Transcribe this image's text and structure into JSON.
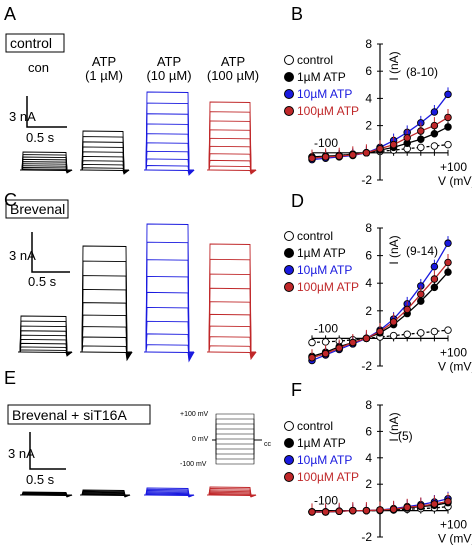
{
  "panels": {
    "A": {
      "letter": "A",
      "box_label": "control",
      "con_label": "con",
      "atp1": "ATP",
      "atp1_conc": "(1 µM)",
      "atp10": "ATP",
      "atp10_conc": "(10 µM)",
      "atp100": "ATP",
      "atp100_conc": "(100 µM)",
      "scale_y": "3 nA",
      "scale_x": "0.5 s"
    },
    "B": {
      "letter": "B",
      "n_label": "(8-10)"
    },
    "C": {
      "letter": "C",
      "box_label": "Brevenal",
      "scale_y": "3 nA",
      "scale_x": "0.5 s"
    },
    "D": {
      "letter": "D",
      "n_label": "(9-14)"
    },
    "E": {
      "letter": "E",
      "box_label": "Brevenal + siT16A",
      "scale_y": "3 nA",
      "scale_x": "0.5 s",
      "protocol": {
        "top": "+100 mV",
        "mid": "0 mV",
        "bot": "-100 mV",
        "cc": "cc"
      }
    },
    "F": {
      "letter": "F",
      "n_label": "(5)"
    }
  },
  "legend": {
    "control": "control",
    "atp1": "1µM ATP",
    "atp10": "10µM ATP",
    "atp100": "100µM ATP"
  },
  "axes": {
    "ylabel": "I (nA)",
    "xlabel": "V (mV)",
    "xneg": "-100",
    "xpos": "+100",
    "yticks": [
      "8",
      "6",
      "4",
      "2",
      "-2"
    ]
  },
  "colors": {
    "control": "#ffffff",
    "atp1": "#000000",
    "atp10": "#1a1adf",
    "atp100": "#c0282a"
  },
  "chart_data": [
    {
      "type": "line",
      "panel": "B",
      "xlabel": "V (mV)",
      "ylabel": "I (nA)",
      "xlim": [
        -100,
        100
      ],
      "ylim": [
        -2,
        8
      ],
      "x": [
        -100,
        -80,
        -60,
        -40,
        -20,
        0,
        20,
        40,
        60,
        80,
        100
      ],
      "series": [
        {
          "name": "control",
          "values": [
            -0.3,
            -0.3,
            -0.2,
            -0.1,
            0,
            0.1,
            0.2,
            0.3,
            0.4,
            0.5,
            0.6
          ]
        },
        {
          "name": "1µM ATP",
          "values": [
            -0.3,
            -0.25,
            -0.2,
            -0.1,
            0,
            0.2,
            0.4,
            0.7,
            1.0,
            1.4,
            1.9
          ]
        },
        {
          "name": "10µM ATP",
          "values": [
            -0.5,
            -0.4,
            -0.3,
            -0.2,
            0,
            0.4,
            0.9,
            1.5,
            2.2,
            3.0,
            4.3
          ]
        },
        {
          "name": "100µM ATP",
          "values": [
            -0.4,
            -0.3,
            -0.25,
            -0.15,
            0,
            0.3,
            0.6,
            1.1,
            1.6,
            2.0,
            2.6
          ]
        }
      ]
    },
    {
      "type": "line",
      "panel": "D",
      "xlabel": "V (mV)",
      "ylabel": "I (nA)",
      "xlim": [
        -100,
        100
      ],
      "ylim": [
        -2,
        8
      ],
      "x": [
        -100,
        -80,
        -60,
        -40,
        -20,
        0,
        20,
        40,
        60,
        80,
        100
      ],
      "series": [
        {
          "name": "control",
          "values": [
            -0.3,
            -0.25,
            -0.2,
            -0.1,
            0,
            0.1,
            0.2,
            0.3,
            0.4,
            0.5,
            0.6
          ]
        },
        {
          "name": "1µM ATP",
          "values": [
            -1.3,
            -1.0,
            -0.6,
            -0.3,
            0,
            0.4,
            1.0,
            1.8,
            2.7,
            3.7,
            4.8
          ]
        },
        {
          "name": "10µM ATP",
          "values": [
            -1.6,
            -1.2,
            -0.8,
            -0.4,
            0,
            0.6,
            1.4,
            2.5,
            3.8,
            5.2,
            6.9
          ]
        },
        {
          "name": "100µM ATP",
          "values": [
            -1.4,
            -1.1,
            -0.7,
            -0.3,
            0,
            0.5,
            1.2,
            2.1,
            3.2,
            4.3,
            5.5
          ]
        }
      ]
    },
    {
      "type": "line",
      "panel": "F",
      "xlabel": "V (mV)",
      "ylabel": "I (nA)",
      "xlim": [
        -100,
        100
      ],
      "ylim": [
        -2,
        8
      ],
      "x": [
        -100,
        -80,
        -60,
        -40,
        -20,
        0,
        20,
        40,
        60,
        80,
        100
      ],
      "series": [
        {
          "name": "control",
          "values": [
            -0.1,
            -0.1,
            -0.05,
            0,
            0,
            0,
            0.05,
            0.1,
            0.15,
            0.2,
            0.3
          ]
        },
        {
          "name": "1µM ATP",
          "values": [
            -0.1,
            -0.1,
            -0.05,
            0,
            0,
            0.05,
            0.1,
            0.2,
            0.3,
            0.4,
            0.6
          ]
        },
        {
          "name": "10µM ATP",
          "values": [
            -0.1,
            -0.1,
            -0.05,
            0,
            0,
            0.05,
            0.15,
            0.3,
            0.45,
            0.65,
            0.9
          ]
        },
        {
          "name": "100µM ATP",
          "values": [
            -0.1,
            -0.1,
            -0.05,
            0,
            0,
            0.05,
            0.1,
            0.25,
            0.35,
            0.5,
            0.7
          ]
        }
      ]
    }
  ]
}
